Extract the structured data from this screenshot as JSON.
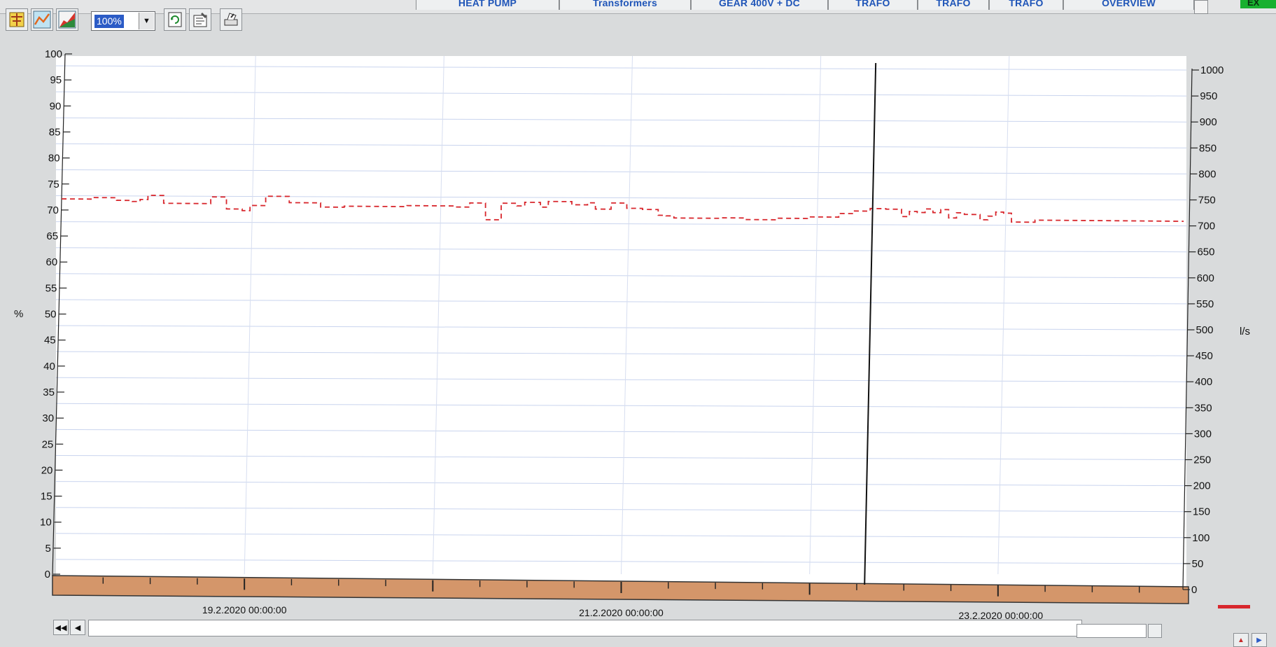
{
  "tabs": [
    {
      "label": "HEAT PUMP",
      "left": 0,
      "width": 0
    },
    {
      "label": "Transformers"
    },
    {
      "label": "GEAR 400V + DC"
    },
    {
      "label": "TRAFO"
    },
    {
      "label": "TRAFO"
    },
    {
      "label": "TRAFO"
    },
    {
      "label": "OVERVIEW"
    }
  ],
  "toolbar": {
    "zoom_value": "100%",
    "icons": [
      "ruler-icon",
      "line-trend-icon",
      "area-trend-icon",
      "refresh-icon",
      "properties-icon",
      "print-icon"
    ]
  },
  "chart_data": {
    "type": "line",
    "left_axis": {
      "unit": "%",
      "ylim": [
        0,
        100
      ],
      "ticks": [
        0,
        5,
        10,
        15,
        20,
        25,
        30,
        35,
        40,
        45,
        50,
        55,
        60,
        65,
        70,
        75,
        80,
        85,
        90,
        95,
        100
      ]
    },
    "right_axis": {
      "unit": "l/s",
      "ylim": [
        0,
        1000
      ],
      "ticks": [
        0,
        50,
        100,
        150,
        200,
        250,
        300,
        350,
        400,
        450,
        500,
        550,
        600,
        650,
        700,
        750,
        800,
        850,
        900,
        950,
        1000
      ]
    },
    "x_axis": {
      "range": [
        "18.2.2020 00:00:00",
        "24.2.2020 00:00:00"
      ],
      "tick_labels": [
        "19.2.2020 00:00:00",
        "21.2.2020 00:00:00",
        "23.2.2020 00:00:00"
      ]
    },
    "cursor_time": "22.2.2020 07:00:00",
    "series": [
      {
        "axis": "right",
        "color": "#d8272d",
        "style": "dashed-step",
        "x_hours": [
          0,
          4,
          7,
          9,
          10,
          11,
          13,
          16,
          19,
          21,
          23,
          24,
          26,
          29,
          31,
          33,
          36,
          38,
          44,
          50,
          52,
          54,
          56,
          58,
          59,
          61,
          62,
          63,
          65,
          67,
          68,
          70,
          72,
          74,
          76,
          77,
          78,
          81,
          84,
          87,
          91,
          95,
          99,
          101,
          103,
          105,
          107,
          108,
          109,
          110,
          111,
          112,
          113,
          114,
          115,
          116,
          117,
          118,
          119,
          120,
          121,
          124,
          129,
          133
        ],
        "values": [
          752,
          755,
          750,
          748,
          752,
          760,
          745,
          745,
          758,
          735,
          732,
          742,
          760,
          748,
          748,
          740,
          742,
          742,
          744,
          742,
          750,
          718,
          750,
          745,
          752,
          743,
          754,
          754,
          748,
          752,
          740,
          752,
          742,
          740,
          729,
          728,
          724,
          724,
          725,
          722,
          725,
          728,
          735,
          740,
          745,
          744,
          730,
          740,
          738,
          745,
          738,
          744,
          728,
          738,
          735,
          735,
          725,
          732,
          740,
          738,
          721,
          725,
          725,
          725
        ]
      }
    ]
  },
  "scrollbar": {
    "left_buttons": [
      "first-page-icon",
      "previous-icon"
    ]
  }
}
